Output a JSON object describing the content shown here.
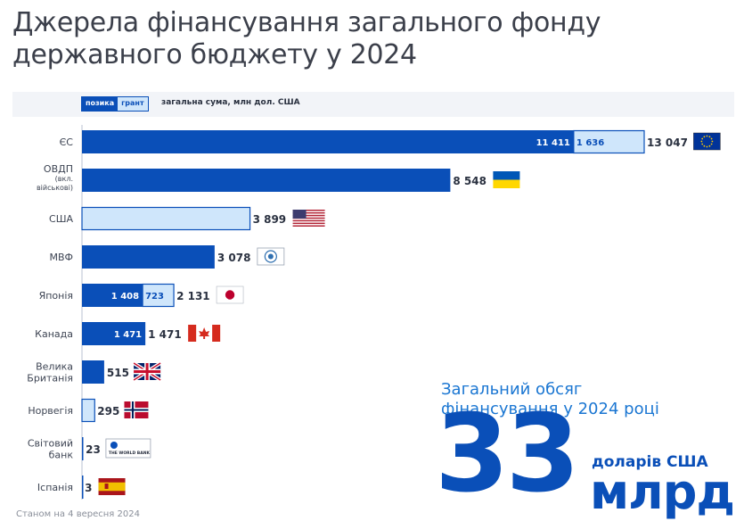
{
  "title": {
    "line1": "Джерела фінансування загального фонду",
    "line2": "державного бюджету у 2024"
  },
  "legend": {
    "loan_label": "позика",
    "grant_label": "грант",
    "note": "загальна сума, млн дол. США"
  },
  "colors": {
    "loan": "#0a4fb8",
    "grant": "#cfe6fb",
    "accent": "#1a76d2"
  },
  "chart_data": {
    "type": "bar",
    "orientation": "horizontal",
    "stacked": true,
    "categories": [
      [
        "ЄС"
      ],
      [
        "ОВДП",
        "(вкл.",
        "військові)"
      ],
      [
        "США"
      ],
      [
        "МВФ"
      ],
      [
        "Японія"
      ],
      [
        "Канада"
      ],
      [
        "Велика",
        "Британія"
      ],
      [
        "Норвегія"
      ],
      [
        "Світовий",
        "банк"
      ],
      [
        "Іспанія"
      ]
    ],
    "series": [
      {
        "name": "позика",
        "values": [
          11411,
          8548,
          0,
          3078,
          1408,
          1471,
          515,
          0,
          23,
          3
        ]
      },
      {
        "name": "грант",
        "values": [
          1636,
          0,
          3899,
          0,
          723,
          0,
          0,
          295,
          0,
          0
        ]
      }
    ],
    "segment_labels": [
      [
        "11 411",
        "1 636"
      ],
      [
        "",
        ""
      ],
      [
        "",
        ""
      ],
      [
        "",
        ""
      ],
      [
        "1 408",
        "723"
      ],
      [
        "1 471",
        ""
      ],
      [
        "",
        ""
      ],
      [
        "",
        ""
      ],
      [
        "",
        ""
      ],
      [
        "",
        ""
      ]
    ],
    "totals": [
      "13 047",
      "8 548",
      "3 899",
      "3 078",
      "2 131",
      "1 471",
      "515",
      "295",
      "23",
      "3"
    ],
    "flags": [
      "eu-flag-icon",
      "ukraine-flag-icon",
      "usa-flag-icon",
      "imf-logo-icon",
      "japan-flag-icon",
      "canada-flag-icon",
      "uk-flag-icon",
      "norway-flag-icon",
      "world-bank-logo-icon",
      "spain-flag-icon"
    ],
    "world_bank_logo_text": "THE WORLD BANK",
    "xlim": [
      0,
      13047
    ],
    "grid": false
  },
  "summary": {
    "label_line1": "Загальний обсяг",
    "label_line2": "фінансування у 2024 році",
    "value": "33",
    "unit": "доларів США",
    "scale": "млрд"
  },
  "footnote": "Станом на 4 вересня 2024"
}
